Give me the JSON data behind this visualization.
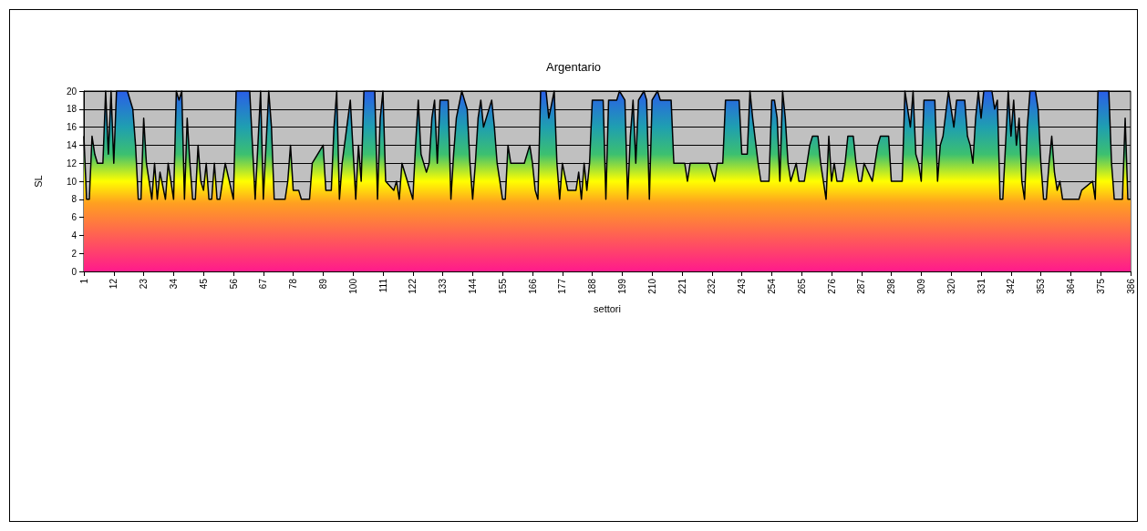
{
  "chart_data": {
    "type": "area",
    "title": "Argentario",
    "xlabel": "settori",
    "ylabel": "SL",
    "x": [
      1,
      2,
      3,
      4,
      5,
      6,
      8,
      9,
      10,
      11,
      12,
      13,
      17,
      19,
      20,
      21,
      22,
      23,
      24,
      25,
      26,
      27,
      28,
      29,
      31,
      32,
      34,
      35,
      36,
      37,
      38,
      39,
      40,
      41,
      42,
      43,
      44,
      45,
      46,
      47,
      48,
      49,
      50,
      51,
      53,
      56,
      57,
      62,
      64,
      66,
      67,
      68,
      69,
      70,
      71,
      75,
      76,
      77,
      78,
      80,
      81,
      84,
      85,
      89,
      90,
      92,
      93,
      94,
      95,
      96,
      99,
      101,
      102,
      103,
      104,
      108,
      109,
      110,
      111,
      112,
      115,
      116,
      117,
      118,
      120,
      122,
      123,
      124,
      125,
      127,
      128,
      129,
      130,
      131,
      132,
      135,
      136,
      137,
      138,
      140,
      141,
      142,
      143,
      144,
      145,
      146,
      147,
      148,
      151,
      152,
      153,
      155,
      156,
      157,
      158,
      163,
      165,
      166,
      167,
      168,
      169,
      171,
      172,
      174,
      175,
      176,
      177,
      179,
      182,
      183,
      184,
      185,
      186,
      187,
      188,
      192,
      193,
      194,
      197,
      198,
      200,
      201,
      202,
      203,
      204,
      205,
      207,
      208,
      209,
      210,
      212,
      213,
      217,
      218,
      222,
      223,
      224,
      231,
      233,
      234,
      236,
      237,
      242,
      243,
      245,
      246,
      247,
      249,
      250,
      253,
      254,
      255,
      256,
      257,
      258,
      259,
      260,
      261,
      262,
      263,
      264,
      266,
      267,
      268,
      269,
      271,
      272,
      273,
      274,
      275,
      276,
      277,
      278,
      280,
      281,
      282,
      284,
      285,
      286,
      287,
      288,
      291,
      292,
      293,
      294,
      297,
      298,
      302,
      303,
      304,
      305,
      306,
      307,
      308,
      309,
      310,
      314,
      315,
      316,
      317,
      319,
      320,
      321,
      322,
      325,
      326,
      327,
      328,
      329,
      330,
      331,
      332,
      335,
      336,
      337,
      338,
      339,
      340,
      341,
      342,
      343,
      344,
      345,
      346,
      347,
      348,
      349,
      351,
      352,
      353,
      354,
      355,
      356,
      357,
      358,
      359,
      360,
      361,
      367,
      368,
      372,
      373,
      374,
      378,
      379,
      380,
      383,
      384,
      385,
      386
    ],
    "series": [
      {
        "color": "#000000",
        "values": [
          15,
          8,
          8,
          15,
          13,
          12,
          12,
          20,
          13,
          20,
          12,
          20,
          20,
          18,
          14,
          8,
          8,
          17,
          12,
          10,
          8,
          12,
          8,
          11,
          8,
          12,
          8,
          20,
          19,
          20,
          8,
          17,
          12,
          8,
          8,
          14,
          10,
          9,
          12,
          8,
          8,
          12,
          8,
          8,
          12,
          8,
          20,
          20,
          8,
          20,
          8,
          14,
          20,
          16,
          8,
          8,
          10,
          14,
          9,
          9,
          8,
          8,
          12,
          14,
          9,
          9,
          16,
          20,
          8,
          12,
          19,
          8,
          14,
          10,
          20,
          20,
          8,
          17,
          20,
          10,
          9,
          10,
          8,
          12,
          10,
          8,
          14,
          19,
          13,
          11,
          12,
          17,
          19,
          12,
          19,
          19,
          8,
          13,
          17,
          20,
          19,
          18,
          12,
          8,
          12,
          17,
          19,
          16,
          19,
          16,
          12,
          8,
          8,
          14,
          12,
          12,
          14,
          12,
          9,
          8,
          20,
          20,
          17,
          20,
          12,
          8,
          12,
          9,
          9,
          11,
          8,
          12,
          9,
          12,
          19,
          19,
          8,
          19,
          19,
          20,
          19,
          8,
          15,
          19,
          12,
          19,
          20,
          19,
          8,
          19,
          20,
          19,
          19,
          12,
          12,
          10,
          12,
          12,
          10,
          12,
          12,
          19,
          19,
          13,
          13,
          20,
          17,
          12,
          10,
          10,
          19,
          19,
          17,
          10,
          20,
          17,
          12,
          10,
          11,
          12,
          10,
          10,
          12,
          14,
          15,
          15,
          12,
          10,
          8,
          15,
          10,
          12,
          10,
          10,
          12,
          15,
          15,
          12,
          10,
          10,
          12,
          10,
          12,
          14,
          15,
          15,
          10,
          10,
          20,
          18,
          16,
          20,
          13,
          12,
          10,
          19,
          19,
          10,
          14,
          15,
          20,
          18,
          16,
          19,
          19,
          15,
          14,
          12,
          17,
          20,
          17,
          20,
          20,
          18,
          19,
          8,
          8,
          14,
          20,
          15,
          19,
          14,
          17,
          10,
          8,
          16,
          20,
          20,
          18,
          12,
          8,
          8,
          12,
          15,
          11,
          9,
          10,
          8,
          8,
          9,
          10,
          8,
          20,
          20,
          12,
          8,
          8,
          17,
          8,
          8
        ]
      }
    ],
    "xlim": [
      1,
      386
    ],
    "xticks": [
      1,
      12,
      23,
      34,
      45,
      56,
      67,
      78,
      89,
      100,
      111,
      122,
      133,
      144,
      155,
      166,
      177,
      188,
      199,
      210,
      221,
      232,
      243,
      254,
      265,
      276,
      287,
      298,
      309,
      320,
      331,
      342,
      353,
      364,
      375,
      386
    ],
    "ylim": [
      0,
      20
    ],
    "yticks": [
      0,
      2,
      4,
      6,
      8,
      10,
      12,
      14,
      16,
      18,
      20
    ],
    "grid": "y",
    "marker": "none",
    "line_style": "solid"
  }
}
